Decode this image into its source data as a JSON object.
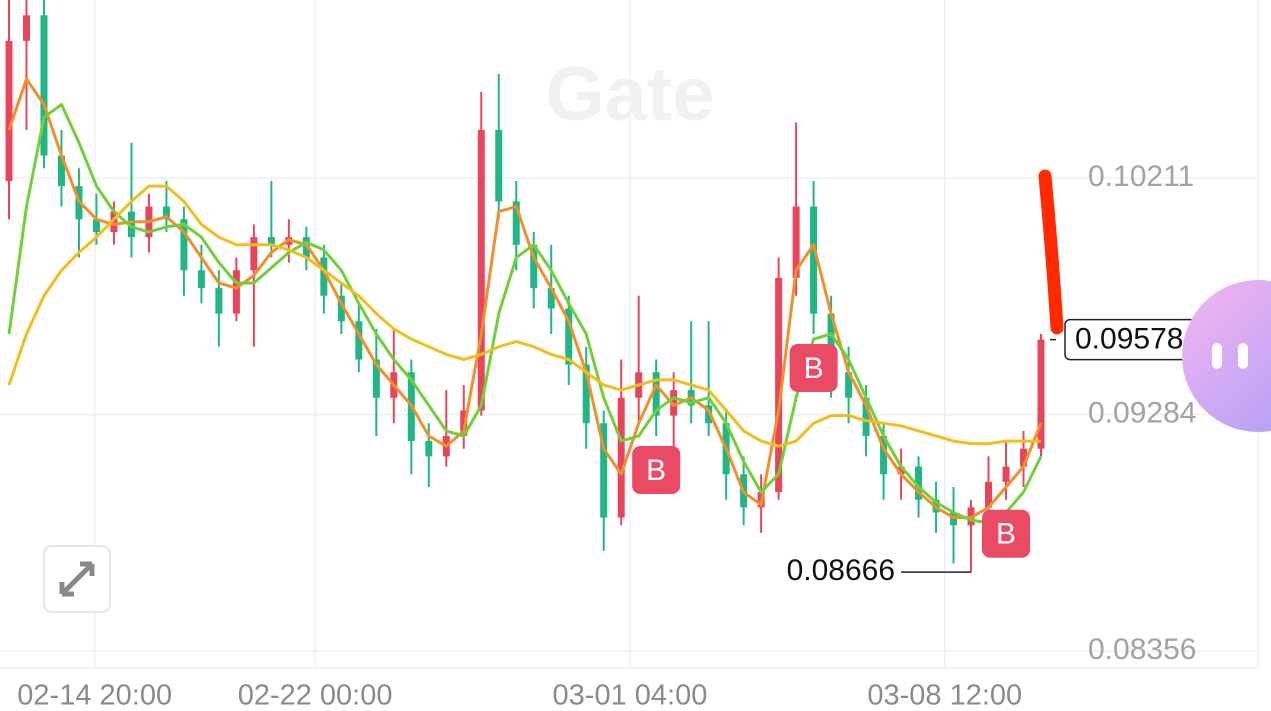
{
  "chart_data": {
    "type": "candlestick",
    "watermark": "Gate",
    "up_color": "#e8455d",
    "down_color": "#22b585",
    "ylim": [
      0.0829,
      0.1091
    ],
    "yticks": [
      0.08356,
      0.09284,
      0.10211
    ],
    "xticks": [
      {
        "value": 4.9,
        "label": "02-14 20:00"
      },
      {
        "value": 17.5,
        "label": "02-22 00:00"
      },
      {
        "value": 35.5,
        "label": "03-01 04:00"
      },
      {
        "value": 53.5,
        "label": "03-08 12:00"
      }
    ],
    "grid": true,
    "candles": [
      [
        0.102,
        0.1091,
        0.1005,
        0.1075
      ],
      [
        0.1075,
        0.1091,
        0.104,
        0.1085
      ],
      [
        0.1085,
        0.1091,
        0.1025,
        0.103
      ],
      [
        0.103,
        0.104,
        0.101,
        0.1018
      ],
      [
        0.1018,
        0.1025,
        0.099,
        0.1005
      ],
      [
        0.1005,
        0.1015,
        0.0995,
        0.1
      ],
      [
        0.1,
        0.1012,
        0.0995,
        0.1008
      ],
      [
        0.1008,
        0.1035,
        0.099,
        0.0998
      ],
      [
        0.0998,
        0.1015,
        0.0992,
        0.101
      ],
      [
        0.101,
        0.102,
        0.1,
        0.1005
      ],
      [
        0.1005,
        0.101,
        0.0975,
        0.0985
      ],
      [
        0.0985,
        0.0995,
        0.0972,
        0.0978
      ],
      [
        0.0978,
        0.0985,
        0.0955,
        0.0968
      ],
      [
        0.0968,
        0.099,
        0.0965,
        0.0985
      ],
      [
        0.0985,
        0.1003,
        0.0955,
        0.0998
      ],
      [
        0.0998,
        0.102,
        0.099,
        0.0995
      ],
      [
        0.0995,
        0.1005,
        0.0988,
        0.0998
      ],
      [
        0.0998,
        0.1002,
        0.0985,
        0.099
      ],
      [
        0.099,
        0.0995,
        0.0968,
        0.0975
      ],
      [
        0.0975,
        0.098,
        0.096,
        0.0965
      ],
      [
        0.0965,
        0.0972,
        0.0945,
        0.095
      ],
      [
        0.095,
        0.0962,
        0.092,
        0.0935
      ],
      [
        0.0935,
        0.0962,
        0.0925,
        0.0945
      ],
      [
        0.0945,
        0.095,
        0.0905,
        0.0918
      ],
      [
        0.0918,
        0.0925,
        0.09,
        0.0912
      ],
      [
        0.0912,
        0.0938,
        0.0908,
        0.092
      ],
      [
        0.092,
        0.094,
        0.0915,
        0.093
      ],
      [
        0.093,
        0.1055,
        0.0928,
        0.104
      ],
      [
        0.104,
        0.1062,
        0.1005,
        0.1012
      ],
      [
        0.1012,
        0.102,
        0.0985,
        0.0995
      ],
      [
        0.0995,
        0.1,
        0.097,
        0.0978
      ],
      [
        0.0978,
        0.0995,
        0.096,
        0.097
      ],
      [
        0.097,
        0.0975,
        0.094,
        0.0948
      ],
      [
        0.0948,
        0.0955,
        0.0915,
        0.0925
      ],
      [
        0.0925,
        0.093,
        0.0875,
        0.0888
      ],
      [
        0.0888,
        0.095,
        0.0885,
        0.0935
      ],
      [
        0.0935,
        0.0975,
        0.0925,
        0.0945
      ],
      [
        0.0945,
        0.095,
        0.092,
        0.0928
      ],
      [
        0.0928,
        0.0945,
        0.0915,
        0.0938
      ],
      [
        0.0938,
        0.0965,
        0.0925,
        0.0932
      ],
      [
        0.0932,
        0.0965,
        0.092,
        0.0925
      ],
      [
        0.0925,
        0.093,
        0.0895,
        0.0905
      ],
      [
        0.0905,
        0.0912,
        0.0885,
        0.0892
      ],
      [
        0.0892,
        0.0905,
        0.0882,
        0.0898
      ],
      [
        0.0898,
        0.099,
        0.0895,
        0.0982
      ],
      [
        0.0982,
        0.1043,
        0.0975,
        0.101
      ],
      [
        0.101,
        0.102,
        0.096,
        0.0968
      ],
      [
        0.0968,
        0.0975,
        0.0935,
        0.0945
      ],
      [
        0.0945,
        0.0955,
        0.0925,
        0.0935
      ],
      [
        0.0935,
        0.094,
        0.0912,
        0.092
      ],
      [
        0.092,
        0.0925,
        0.0895,
        0.0905
      ],
      [
        0.0905,
        0.0915,
        0.0895,
        0.0908
      ],
      [
        0.0908,
        0.0912,
        0.0888,
        0.0895
      ],
      [
        0.0895,
        0.0902,
        0.0882,
        0.089
      ],
      [
        0.089,
        0.09,
        0.087,
        0.0885
      ],
      [
        0.0885,
        0.0895,
        0.08666,
        0.0892
      ],
      [
        0.0892,
        0.0912,
        0.0885,
        0.0902
      ],
      [
        0.0902,
        0.0918,
        0.0895,
        0.0908
      ],
      [
        0.0908,
        0.0922,
        0.09,
        0.0915
      ],
      [
        0.0915,
        0.096,
        0.0912,
        0.09578
      ]
    ],
    "series": [
      {
        "color": "#f0902a",
        "values": [
          0.104,
          0.106,
          0.105,
          0.103,
          0.1012,
          0.1005,
          0.1003,
          0.1004,
          0.1004,
          0.1006,
          0.1,
          0.099,
          0.098,
          0.0978,
          0.0983,
          0.0992,
          0.0997,
          0.0995,
          0.0985,
          0.0972,
          0.096,
          0.0948,
          0.094,
          0.0932,
          0.092,
          0.0916,
          0.0922,
          0.096,
          0.1008,
          0.101,
          0.099,
          0.0978,
          0.0965,
          0.0945,
          0.0915,
          0.0905,
          0.0925,
          0.094,
          0.0932,
          0.0935,
          0.093,
          0.0915,
          0.0898,
          0.0893,
          0.093,
          0.0985,
          0.0995,
          0.0968,
          0.0945,
          0.0932,
          0.0915,
          0.0905,
          0.0898,
          0.0892,
          0.0888,
          0.0888,
          0.0892,
          0.09,
          0.0908,
          0.0925
        ]
      },
      {
        "color": "#6fd03a",
        "values": [
          0.096,
          0.101,
          0.1045,
          0.105,
          0.1035,
          0.1018,
          0.1008,
          0.1002,
          0.1,
          0.1002,
          0.1003,
          0.0998,
          0.0988,
          0.098,
          0.098,
          0.0986,
          0.0992,
          0.0996,
          0.0993,
          0.0985,
          0.0972,
          0.096,
          0.095,
          0.0942,
          0.0932,
          0.0922,
          0.092,
          0.0932,
          0.0968,
          0.099,
          0.0995,
          0.0985,
          0.0972,
          0.096,
          0.0935,
          0.0918,
          0.092,
          0.093,
          0.0935,
          0.0933,
          0.0935,
          0.0925,
          0.091,
          0.0898,
          0.0905,
          0.0935,
          0.0958,
          0.096,
          0.095,
          0.0935,
          0.092,
          0.0908,
          0.09,
          0.0894,
          0.089,
          0.0887,
          0.0886,
          0.089,
          0.0898,
          0.0912
        ]
      },
      {
        "color": "#f2bd1e",
        "values": [
          0.094,
          0.096,
          0.0975,
          0.0985,
          0.0992,
          0.0998,
          0.1005,
          0.1012,
          0.1018,
          0.1018,
          0.1012,
          0.1003,
          0.0998,
          0.0995,
          0.0995,
          0.0995,
          0.0993,
          0.099,
          0.0985,
          0.098,
          0.0975,
          0.0968,
          0.0962,
          0.0958,
          0.0955,
          0.0952,
          0.095,
          0.0952,
          0.0955,
          0.0957,
          0.0955,
          0.0952,
          0.095,
          0.0945,
          0.094,
          0.0938,
          0.094,
          0.0942,
          0.0942,
          0.094,
          0.0938,
          0.093,
          0.0922,
          0.0918,
          0.0916,
          0.0918,
          0.0925,
          0.0928,
          0.0928,
          0.0926,
          0.0925,
          0.0924,
          0.0922,
          0.092,
          0.0918,
          0.0917,
          0.0917,
          0.0918,
          0.0918,
          0.0918
        ]
      }
    ],
    "signals": [
      {
        "candle": 37,
        "label": "B"
      },
      {
        "candle": 46,
        "label": "B"
      },
      {
        "candle": 57,
        "label": "B"
      }
    ]
  }
}
